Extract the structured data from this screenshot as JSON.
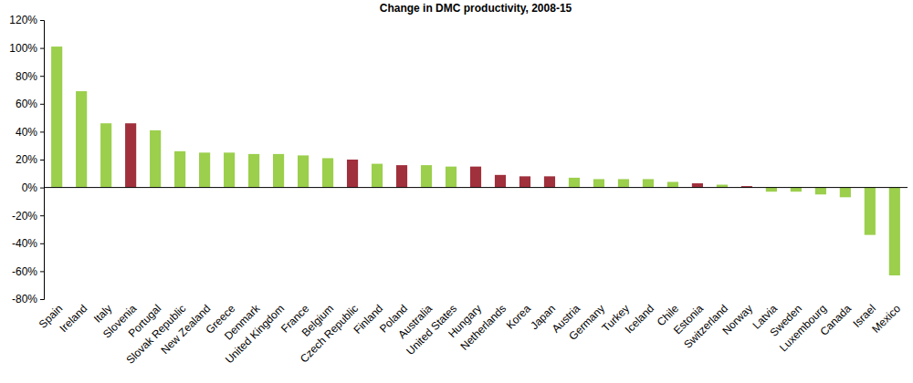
{
  "chart_data": {
    "type": "bar",
    "title": "Change in DMC productivity, 2008-15",
    "categories": [
      "Spain",
      "Ireland",
      "Italy",
      "Slovenia",
      "Portugal",
      "Slovak Republic",
      "New Zealand",
      "Greece",
      "Denmark",
      "United Kingdom",
      "France",
      "Belgium",
      "Czech Republic",
      "Finland",
      "Poland",
      "Australia",
      "United States",
      "Hungary",
      "Netherlands",
      "Korea",
      "Japan",
      "Austria",
      "Germany",
      "Turkey",
      "Iceland",
      "Chile",
      "Estonia",
      "Switzerland",
      "Norway",
      "Latvia",
      "Sweden",
      "Luxembourg",
      "Canada",
      "Israel",
      "Mexico"
    ],
    "values": [
      101,
      69,
      46,
      46,
      41,
      26,
      25,
      25,
      24,
      24,
      23,
      21,
      20,
      17,
      16,
      16,
      15,
      15,
      9,
      8,
      8,
      7,
      6,
      6,
      6,
      4,
      3,
      2,
      1,
      -3,
      -3,
      -5,
      -7,
      -34,
      -63
    ],
    "colors": [
      "#9bcf4c",
      "#9bcf4c",
      "#9bcf4c",
      "#a0303c",
      "#9bcf4c",
      "#9bcf4c",
      "#9bcf4c",
      "#9bcf4c",
      "#9bcf4c",
      "#9bcf4c",
      "#9bcf4c",
      "#9bcf4c",
      "#a0303c",
      "#9bcf4c",
      "#a0303c",
      "#9bcf4c",
      "#9bcf4c",
      "#a0303c",
      "#a0303c",
      "#a0303c",
      "#a0303c",
      "#9bcf4c",
      "#9bcf4c",
      "#9bcf4c",
      "#9bcf4c",
      "#9bcf4c",
      "#a0303c",
      "#9bcf4c",
      "#a0303c",
      "#9bcf4c",
      "#9bcf4c",
      "#9bcf4c",
      "#9bcf4c",
      "#9bcf4c",
      "#9bcf4c"
    ],
    "ylim": [
      -80,
      120
    ],
    "yticks": [
      {
        "value": -80,
        "label": "-80%"
      },
      {
        "value": -60,
        "label": "-60%"
      },
      {
        "value": -40,
        "label": "-40%"
      },
      {
        "value": -20,
        "label": "-20%"
      },
      {
        "value": 0,
        "label": "0%"
      },
      {
        "value": 20,
        "label": "20%"
      },
      {
        "value": 40,
        "label": "40%"
      },
      {
        "value": 60,
        "label": "60%"
      },
      {
        "value": 80,
        "label": "80%"
      },
      {
        "value": 100,
        "label": "100%"
      },
      {
        "value": 120,
        "label": "120%"
      }
    ],
    "grid": false
  }
}
